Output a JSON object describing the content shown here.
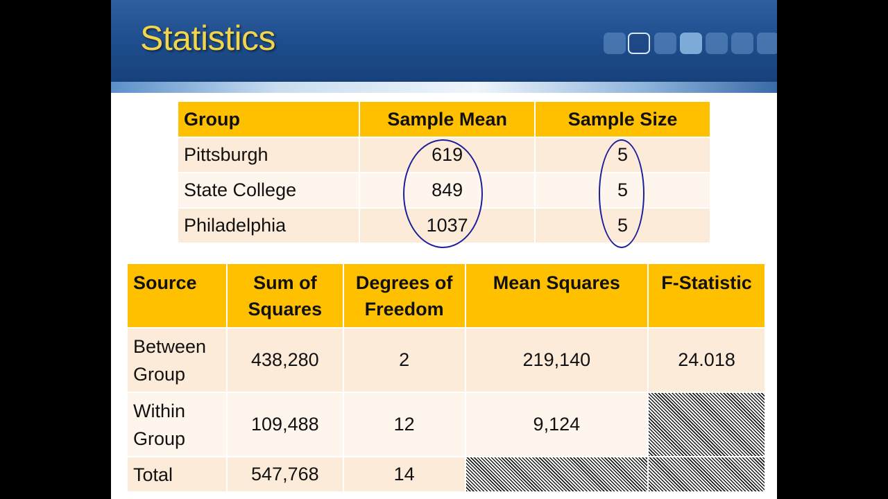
{
  "slide": {
    "title": "Statistics",
    "colors": {
      "title": "#f2d54a",
      "banner": "#1f4f8e",
      "header_fill": "#ffc000",
      "row_fill": "#fdebd9",
      "circle": "#1a1f9a"
    }
  },
  "group_table": {
    "headers": [
      "Group",
      "Sample Mean",
      "Sample Size"
    ],
    "rows": [
      [
        "Pittsburgh",
        "619",
        "5"
      ],
      [
        "State College",
        "849",
        "5"
      ],
      [
        "Philadelphia",
        "1037",
        "5"
      ]
    ]
  },
  "anova_table": {
    "headers": {
      "source": "Source",
      "ss_line1": "Sum of",
      "ss_line2": "Squares",
      "df_line1": "Degrees of",
      "df_line2": "Freedom",
      "ms": "Mean Squares",
      "f": "F-Statistic"
    },
    "rows": {
      "between": {
        "source_line1": "Between",
        "source_line2": "Group",
        "ss": "438,280",
        "df": "2",
        "ms": "219,140",
        "f": "24.018"
      },
      "within": {
        "source_line1": "Within",
        "source_line2": "Group",
        "ss": "109,488",
        "df": "12",
        "ms": "9,124"
      },
      "total": {
        "source": "Total",
        "ss": "547,768",
        "df": "14"
      }
    }
  }
}
